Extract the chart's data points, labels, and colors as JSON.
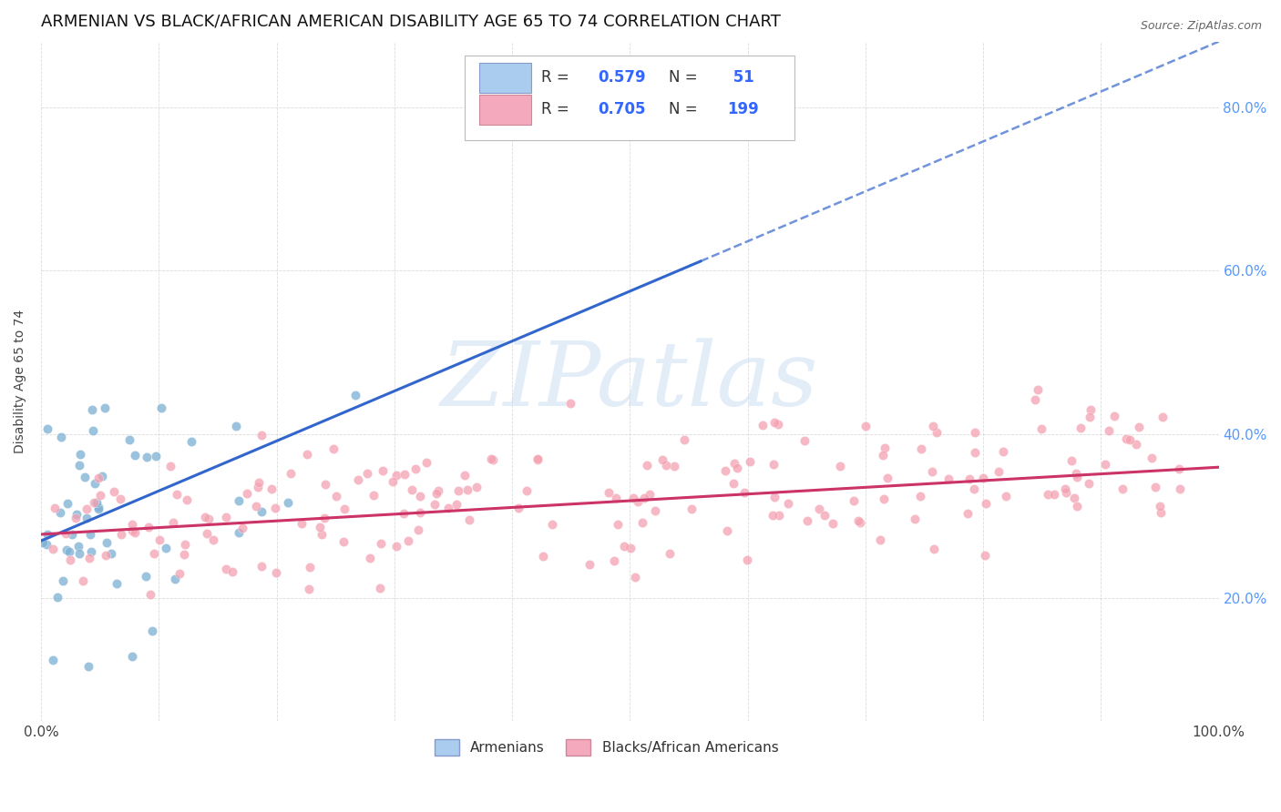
{
  "title": "ARMENIAN VS BLACK/AFRICAN AMERICAN DISABILITY AGE 65 TO 74 CORRELATION CHART",
  "source": "Source: ZipAtlas.com",
  "xlabel": "",
  "ylabel": "Disability Age 65 to 74",
  "x_min": 0.0,
  "x_max": 1.0,
  "y_min": 0.05,
  "y_max": 0.88,
  "armenian_R": 0.579,
  "armenian_N": 51,
  "black_R": 0.705,
  "black_N": 199,
  "armenian_color": "#7BAFD4",
  "black_color": "#F4A0B0",
  "armenian_line_color": "#3366CC",
  "black_line_color": "#CC3366",
  "watermark_text": "ZIPatlas",
  "watermark_color": "#C8DCF0",
  "background_color": "#FFFFFF",
  "grid_color": "#CCCCCC",
  "title_fontsize": 13,
  "axis_label_fontsize": 10,
  "right_tick_color": "#5599FF",
  "legend_blue_patch": "#AACCEE",
  "legend_pink_patch": "#F4AABC",
  "legend_text_color": "#333333",
  "legend_value_color": "#3366FF",
  "arm_line_x_start": 0.0,
  "arm_line_x_solid_end": 0.56,
  "arm_line_x_dashed_end": 1.0,
  "arm_line_y_at_0": 0.27,
  "arm_line_y_at_1": 0.88,
  "blk_line_x_start": 0.0,
  "blk_line_x_end": 1.0,
  "blk_line_y_at_0": 0.278,
  "blk_line_y_at_1": 0.36
}
